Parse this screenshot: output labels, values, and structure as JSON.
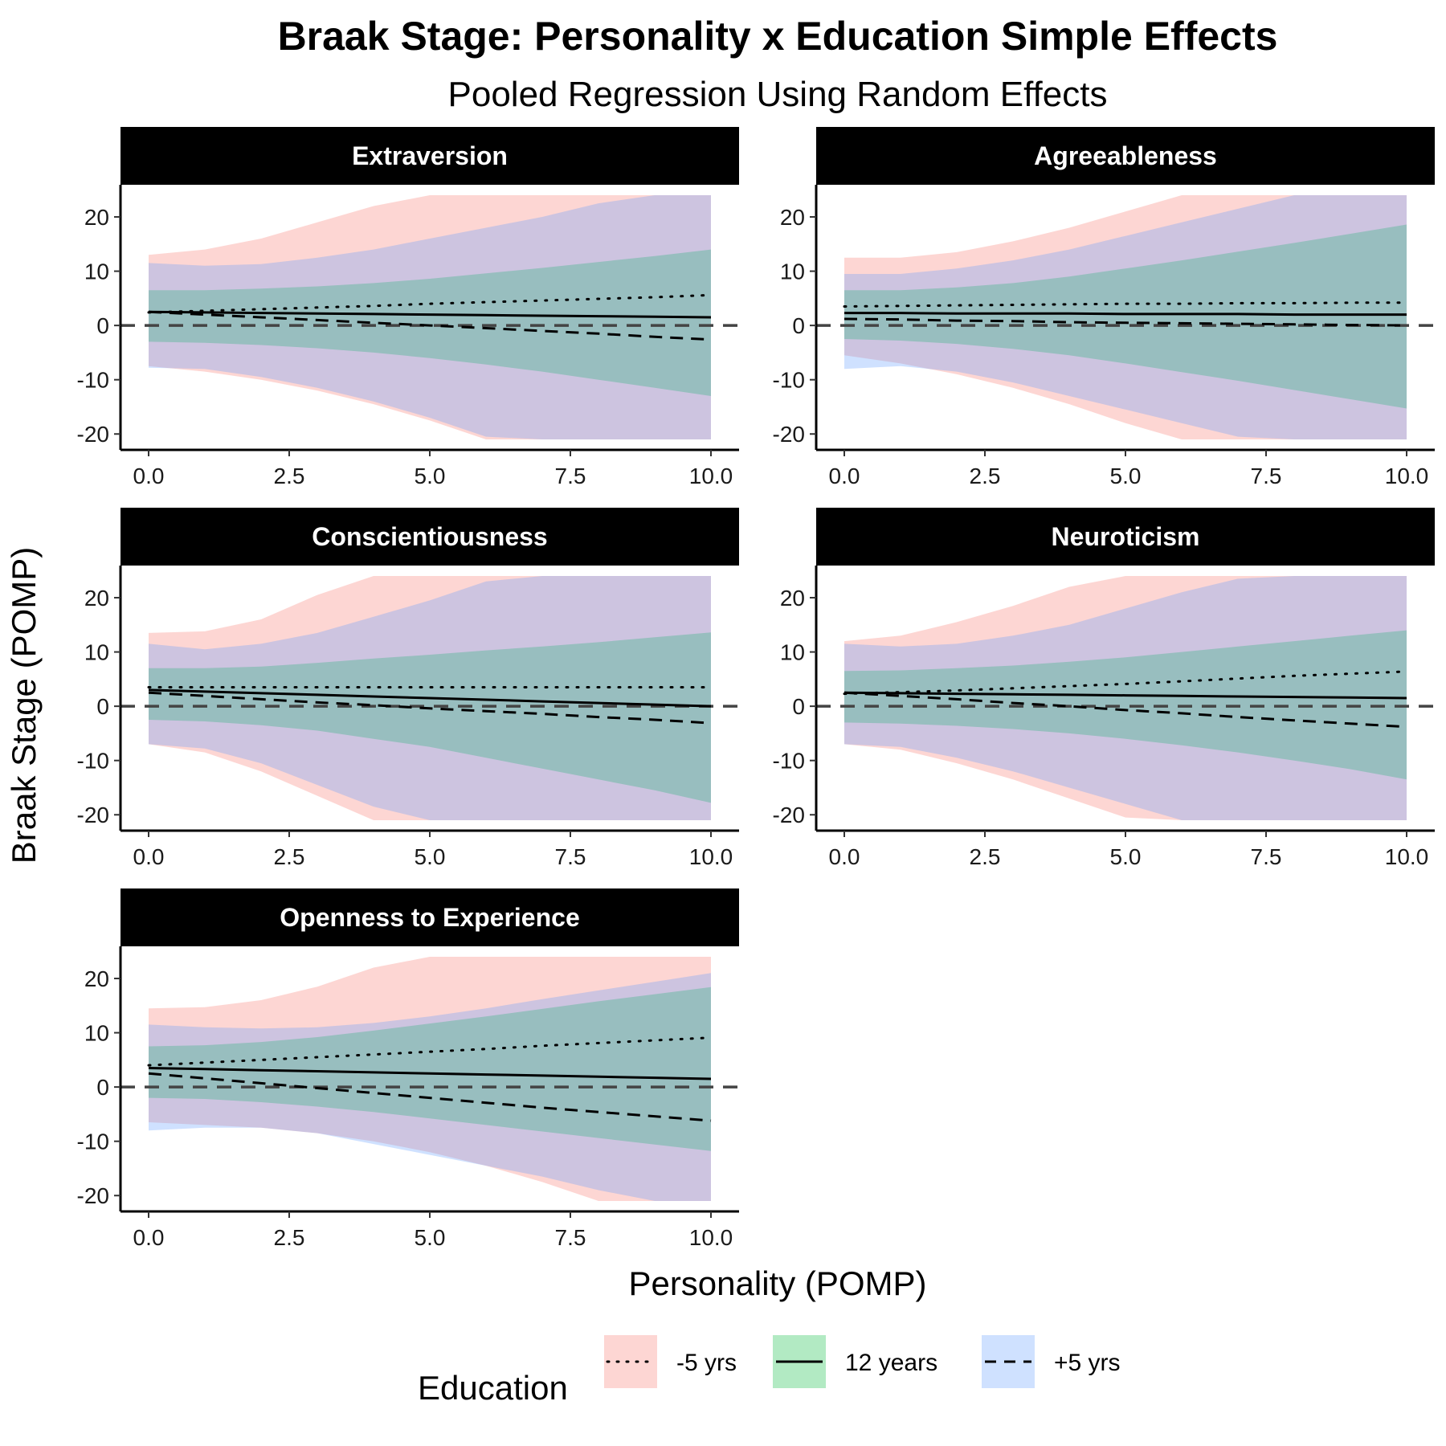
{
  "chart_data": {
    "type": "area",
    "title": "Braak Stage: Personality x Education Simple Effects",
    "subtitle": "Pooled Regression Using Random Effects",
    "xlabel": "Personality (POMP)",
    "ylabel": "Braak Stage (POMP)",
    "xlim": [
      0,
      10
    ],
    "ylim": [
      -21,
      24
    ],
    "x_ticks": [
      "0.0",
      "2.5",
      "5.0",
      "7.5",
      "10.0"
    ],
    "y_ticks": [
      "-20",
      "-10",
      "0",
      "10",
      "20"
    ],
    "reference_line": 0,
    "grid": false,
    "legend": {
      "title": "Education",
      "placement": "bottom",
      "entries": [
        {
          "label": "-5 yrs",
          "fill": "#f8766d",
          "line": "dotted"
        },
        {
          "label": "12 years",
          "fill": "#00ba38",
          "line": "solid"
        },
        {
          "label": "+5 yrs",
          "fill": "#619cff",
          "line": "dashed"
        }
      ]
    },
    "panels": [
      {
        "label": "Extraversion",
        "x": [
          0,
          1,
          2,
          3,
          4,
          5,
          6,
          7,
          8,
          9,
          10
        ],
        "series": [
          {
            "name": "-5 yrs",
            "line": [
              2.4,
              2.7,
              3.0,
              3.3,
              3.6,
              4.0,
              4.3,
              4.6,
              4.9,
              5.2,
              5.6
            ],
            "lower": [
              -7.5,
              -8.5,
              -10,
              -12,
              -14.5,
              -17.5,
              -21,
              -21,
              -21,
              -21,
              -21
            ],
            "upper": [
              13,
              14,
              16,
              19,
              22,
              24,
              24,
              24,
              24,
              24,
              24
            ]
          },
          {
            "name": "12 years",
            "line": [
              2.5,
              2.4,
              2.3,
              2.2,
              2.1,
              2.0,
              1.9,
              1.8,
              1.7,
              1.6,
              1.5
            ],
            "lower": [
              -3,
              -3.2,
              -3.6,
              -4.2,
              -5,
              -6,
              -7.2,
              -8.5,
              -10,
              -11.5,
              -13
            ],
            "upper": [
              6.5,
              6.5,
              6.8,
              7.2,
              7.8,
              8.6,
              9.6,
              10.6,
              11.7,
              12.8,
              14
            ]
          },
          {
            "name": "+5 yrs",
            "line": [
              2.5,
              2.0,
              1.5,
              1.0,
              0.5,
              0.0,
              -0.5,
              -1.0,
              -1.5,
              -2.1,
              -2.6
            ],
            "lower": [
              -7.8,
              -8,
              -9.5,
              -11.5,
              -14,
              -17,
              -20.5,
              -21,
              -21,
              -21,
              -21
            ],
            "upper": [
              11.5,
              11,
              11.3,
              12.5,
              14,
              16,
              18,
              20,
              22.5,
              24,
              24
            ]
          }
        ]
      },
      {
        "label": "Agreeableness",
        "x": [
          0,
          1,
          2,
          3,
          4,
          5,
          6,
          7,
          8,
          9,
          10
        ],
        "series": [
          {
            "name": "-5 yrs",
            "line": [
              3.5,
              3.6,
              3.7,
              3.8,
              3.9,
              4.0,
              4.0,
              4.1,
              4.1,
              4.2,
              4.2
            ],
            "lower": [
              -5.5,
              -7,
              -9,
              -11.5,
              -14.5,
              -18,
              -21,
              -21,
              -21,
              -21,
              -21
            ],
            "upper": [
              12.5,
              12.5,
              13.5,
              15.5,
              18,
              21,
              24,
              24,
              24,
              24,
              24
            ]
          },
          {
            "name": "12 years",
            "line": [
              2.3,
              2.3,
              2.2,
              2.2,
              2.2,
              2.1,
              2.1,
              2.1,
              2.0,
              2.0,
              2.0
            ],
            "lower": [
              -2.5,
              -2.8,
              -3.4,
              -4.3,
              -5.5,
              -7,
              -8.6,
              -10.2,
              -11.9,
              -13.6,
              -15.3
            ],
            "upper": [
              6.5,
              6.5,
              7,
              7.8,
              9,
              10.5,
              12,
              13.6,
              15.2,
              16.9,
              18.6
            ]
          },
          {
            "name": "+5 yrs",
            "line": [
              1.2,
              1.1,
              0.9,
              0.8,
              0.6,
              0.5,
              0.4,
              0.3,
              0.2,
              0.1,
              0.0
            ],
            "lower": [
              -8,
              -7.5,
              -8.5,
              -10.5,
              -13,
              -15.5,
              -18,
              -20.5,
              -21,
              -21,
              -21
            ],
            "upper": [
              9.5,
              9.5,
              10.5,
              12,
              14,
              16.5,
              19,
              21.5,
              24,
              24,
              24
            ]
          }
        ]
      },
      {
        "label": "Conscientiousness",
        "x": [
          0,
          1,
          2,
          3,
          4,
          5,
          6,
          7,
          8,
          9,
          10
        ],
        "series": [
          {
            "name": "-5 yrs",
            "line": [
              3.5,
              3.5,
              3.5,
              3.5,
              3.5,
              3.5,
              3.5,
              3.5,
              3.5,
              3.5,
              3.5
            ],
            "lower": [
              -7,
              -8.5,
              -12,
              -16.5,
              -21,
              -21,
              -21,
              -21,
              -21,
              -21,
              -21
            ],
            "upper": [
              13.5,
              13.8,
              16,
              20.5,
              24,
              24,
              24,
              24,
              24,
              24,
              24
            ]
          },
          {
            "name": "12 years",
            "line": [
              3.0,
              2.7,
              2.4,
              2.1,
              1.8,
              1.5,
              1.2,
              0.9,
              0.6,
              0.3,
              0.0
            ],
            "lower": [
              -2.5,
              -2.8,
              -3.5,
              -4.5,
              -6,
              -7.5,
              -9.5,
              -11.5,
              -13.5,
              -15.5,
              -17.8
            ],
            "upper": [
              7,
              7,
              7.3,
              8,
              8.8,
              9.5,
              10.3,
              11,
              11.8,
              12.7,
              13.6
            ]
          },
          {
            "name": "+5 yrs",
            "line": [
              2.5,
              1.9,
              1.3,
              0.7,
              0.2,
              -0.4,
              -0.9,
              -1.4,
              -2.0,
              -2.5,
              -3.1
            ],
            "lower": [
              -7,
              -7.8,
              -10.5,
              -14.5,
              -18.5,
              -21,
              -21,
              -21,
              -21,
              -21,
              -21
            ],
            "upper": [
              11.5,
              10.5,
              11.5,
              13.5,
              16.5,
              19.5,
              23,
              24,
              24,
              24,
              24
            ]
          }
        ]
      },
      {
        "label": "Neuroticism",
        "x": [
          0,
          1,
          2,
          3,
          4,
          5,
          6,
          7,
          8,
          9,
          10
        ],
        "series": [
          {
            "name": "-5 yrs",
            "line": [
              2.3,
              2.6,
              2.9,
              3.3,
              3.7,
              4.1,
              4.6,
              5.1,
              5.6,
              6.0,
              6.4
            ],
            "lower": [
              -7,
              -8,
              -10.5,
              -13.5,
              -17,
              -20.5,
              -21,
              -21,
              -21,
              -21,
              -21
            ],
            "upper": [
              12,
              13,
              15.5,
              18.5,
              22,
              24,
              24,
              24,
              24,
              24,
              24
            ]
          },
          {
            "name": "12 years",
            "line": [
              2.5,
              2.4,
              2.3,
              2.2,
              2.1,
              2.0,
              1.9,
              1.8,
              1.7,
              1.6,
              1.5
            ],
            "lower": [
              -3,
              -3.2,
              -3.6,
              -4.2,
              -5,
              -6,
              -7.2,
              -8.5,
              -10,
              -11.6,
              -13.5
            ],
            "upper": [
              6.5,
              6.6,
              7,
              7.5,
              8.2,
              9,
              10,
              11,
              12,
              13,
              14
            ]
          },
          {
            "name": "+5 yrs",
            "line": [
              2.5,
              1.9,
              1.3,
              0.6,
              0.0,
              -0.7,
              -1.3,
              -2.0,
              -2.6,
              -3.2,
              -3.8
            ],
            "lower": [
              -7,
              -7.5,
              -9.5,
              -12,
              -15,
              -18,
              -21,
              -21,
              -21,
              -21,
              -21
            ],
            "upper": [
              11.5,
              11,
              11.5,
              13,
              15,
              18,
              21,
              23.5,
              24,
              24,
              24
            ]
          }
        ]
      },
      {
        "label": "Openness to Experience",
        "x": [
          0,
          1,
          2,
          3,
          4,
          5,
          6,
          7,
          8,
          9,
          10
        ],
        "series": [
          {
            "name": "-5 yrs",
            "line": [
              4.0,
              4.5,
              5.0,
              5.5,
              6.0,
              6.5,
              7.0,
              7.6,
              8.1,
              8.6,
              9.1
            ],
            "lower": [
              -6.5,
              -7,
              -7.5,
              -8.5,
              -10,
              -12,
              -14.5,
              -17.5,
              -21,
              -21,
              -21
            ],
            "upper": [
              14.5,
              14.7,
              16,
              18.5,
              22,
              24,
              24,
              24,
              24,
              24,
              24
            ]
          },
          {
            "name": "12 years",
            "line": [
              3.5,
              3.3,
              3.1,
              2.9,
              2.7,
              2.5,
              2.3,
              2.1,
              1.9,
              1.7,
              1.5
            ],
            "lower": [
              -2,
              -2.2,
              -2.8,
              -3.6,
              -4.6,
              -5.8,
              -7,
              -8.2,
              -9.4,
              -10.6,
              -11.8
            ],
            "upper": [
              7.5,
              7.7,
              8.3,
              9.2,
              10.4,
              11.7,
              13,
              14.4,
              15.8,
              17.1,
              18.4
            ]
          },
          {
            "name": "+5 yrs",
            "line": [
              2.5,
              1.6,
              0.7,
              -0.2,
              -1.1,
              -2.0,
              -2.9,
              -3.8,
              -4.6,
              -5.4,
              -6.2
            ],
            "lower": [
              -8,
              -7.5,
              -7.5,
              -8.5,
              -10.5,
              -12.5,
              -14.5,
              -16.5,
              -19,
              -21,
              -21
            ],
            "upper": [
              11.5,
              11,
              10.8,
              11,
              11.8,
              13,
              14.5,
              16.2,
              17.8,
              19.4,
              21
            ]
          }
        ]
      }
    ]
  }
}
